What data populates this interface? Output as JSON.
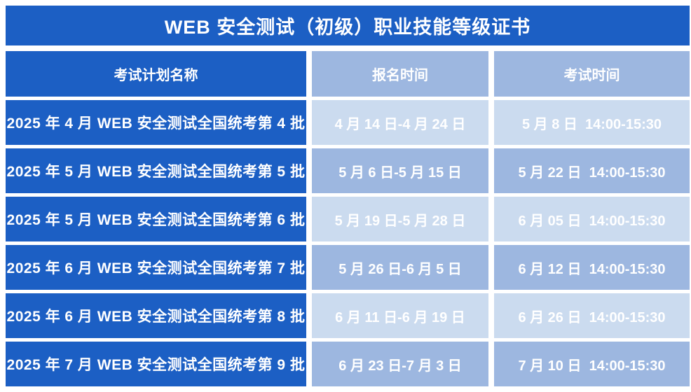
{
  "title": "WEB 安全测试（初级）职业技能等级证书",
  "colors": {
    "dark_blue": "#1C5FC4",
    "medium_blue": "#9DB7E0",
    "light_blue": "#CBDBEF",
    "text": "#FFFFFF"
  },
  "table": {
    "columns": [
      "考试计划名称",
      "报名时间",
      "考试时间"
    ],
    "rows": [
      {
        "plan": "2025 年 4 月 WEB 安全测试全国统考第 4 批",
        "registration": "4 月 14 日-4 月 24 日",
        "exam": "5 月 8 日  14:00-15:30"
      },
      {
        "plan": "2025 年 5 月 WEB 安全测试全国统考第 5 批",
        "registration": "5 月 6 日-5 月 15 日",
        "exam": "5 月 22 日  14:00-15:30"
      },
      {
        "plan": "2025 年 5 月 WEB 安全测试全国统考第 6 批",
        "registration": "5 月 19 日-5 月 28 日",
        "exam": "6 月 05 日  14:00-15:30"
      },
      {
        "plan": "2025 年 6 月 WEB 安全测试全国统考第 7 批",
        "registration": "5 月 26 日-6 月 5 日",
        "exam": "6 月 12 日  14:00-15:30"
      },
      {
        "plan": "2025 年 6 月 WEB 安全测试全国统考第 8 批",
        "registration": "6 月 11 日-6 月 19 日",
        "exam": "6 月 26 日  14:00-15:30"
      },
      {
        "plan": "2025 年 7 月 WEB 安全测试全国统考第 9 批",
        "registration": "6 月 23 日-7 月 3 日",
        "exam": "7 月 10 日  14:00-15:30"
      }
    ]
  }
}
